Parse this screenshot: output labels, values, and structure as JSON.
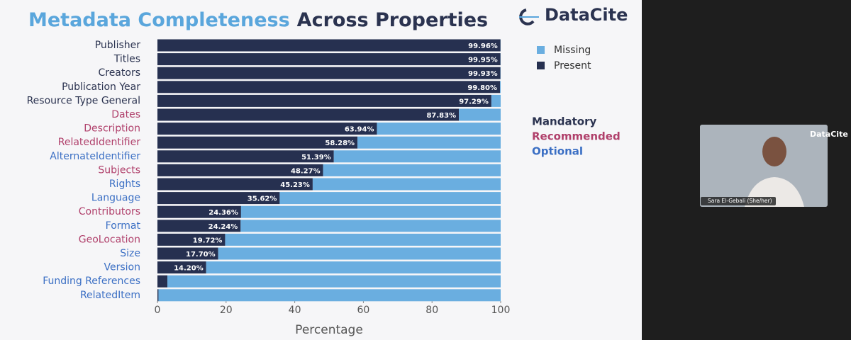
{
  "slide_logo": "DataCite",
  "participant": {
    "logo": "DataCite",
    "name": "Sara El-Gebali (She/her)"
  },
  "chart_data": {
    "type": "bar",
    "orientation": "horizontal",
    "stacked": true,
    "title_parts": [
      {
        "text": "Metadata Completeness",
        "color": "#5aa6dc"
      },
      {
        "text": "Across Properties",
        "color": "#2b3350"
      }
    ],
    "x_label": "Percentage",
    "categories": [
      "Publisher",
      "Titles",
      "Creators",
      "Publication Year",
      "Resource Type General",
      "Dates",
      "Description",
      "RelatedIdentifier",
      "AlternateIdentifier",
      "Subjects",
      "Rights",
      "Language",
      "Contributors",
      "Format",
      "GeoLocation",
      "Size",
      "Version",
      "Funding References",
      "RelatedItem"
    ],
    "category_colors": [
      "#2b3350",
      "#2b3350",
      "#2b3350",
      "#2b3350",
      "#2b3350",
      "#b0406b",
      "#b0406b",
      "#b0406b",
      "#3b6fc4",
      "#b0406b",
      "#3b6fc4",
      "#3b6fc4",
      "#b0406b",
      "#3b6fc4",
      "#b0406b",
      "#3b6fc4",
      "#3b6fc4",
      "#3b6fc4",
      "#3b6fc4"
    ],
    "series": [
      {
        "name": "Present",
        "color": "#263050",
        "values": [
          99.96,
          99.95,
          99.93,
          99.8,
          97.29,
          87.83,
          63.94,
          58.28,
          51.39,
          48.27,
          45.23,
          35.62,
          24.36,
          24.24,
          19.72,
          17.7,
          14.2,
          2.9,
          0.3
        ],
        "value_labels": [
          "99.96%",
          "99.95%",
          "99.93%",
          "99.80%",
          "97.29%",
          "87.83%",
          "63.94%",
          "58.28%",
          "51.39%",
          "48.27%",
          "45.23%",
          "35.62%",
          "24.36%",
          "24.24%",
          "19.72%",
          "17.70%",
          "14.20%",
          null,
          null
        ]
      },
      {
        "name": "Missing",
        "color": "#6aaee0",
        "values": [
          0.04,
          0.05,
          0.07,
          0.2,
          2.71,
          12.17,
          36.06,
          41.72,
          48.61,
          51.73,
          54.77,
          64.38,
          75.64,
          75.76,
          80.28,
          82.3,
          85.8,
          97.1,
          99.7
        ]
      }
    ],
    "legend_order": [
      1,
      0
    ],
    "group_legend": [
      {
        "name": "Mandatory",
        "color": "#2b3350"
      },
      {
        "name": "Recommended",
        "color": "#b0406b"
      },
      {
        "name": "Optional",
        "color": "#3b6fc4"
      }
    ],
    "xlim": [
      0,
      100
    ],
    "xticks": [
      0,
      20,
      40,
      60,
      80,
      100
    ]
  }
}
